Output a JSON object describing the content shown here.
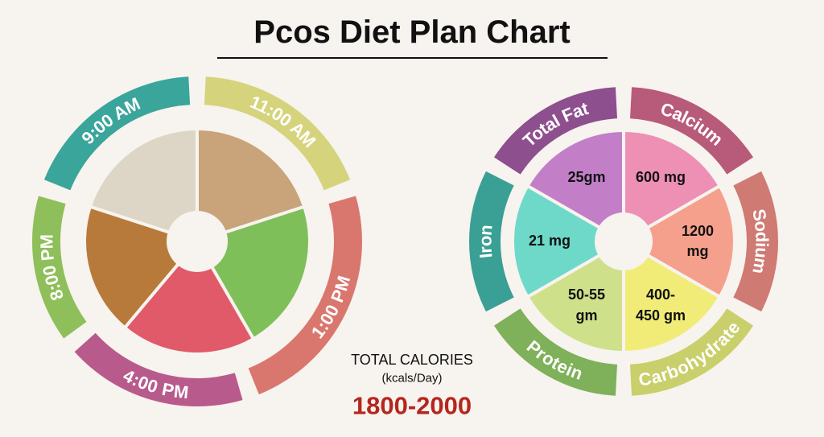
{
  "title": "Pcos Diet Plan Chart",
  "meals": [
    {
      "time": "9:00 AM"
    },
    {
      "time": "11:00 AM"
    },
    {
      "time": "1:00 PM"
    },
    {
      "time": "4:00 PM"
    },
    {
      "time": "8:00 PM"
    }
  ],
  "calories": {
    "label": "TOTAL CALORIES",
    "unit": "(kcals/Day)",
    "value": "1800-2000"
  },
  "nutrients": [
    {
      "name": "Total Fat",
      "amount": "25gm"
    },
    {
      "name": "Calcium",
      "amount": "600 mg"
    },
    {
      "name": "Sodium",
      "amount": "1200 mg"
    },
    {
      "name": "Carbohydrate",
      "amount": "400-450 gm"
    },
    {
      "name": "Protein",
      "amount": "50-55 gm"
    },
    {
      "name": "Iron",
      "amount": "21 mg"
    }
  ]
}
